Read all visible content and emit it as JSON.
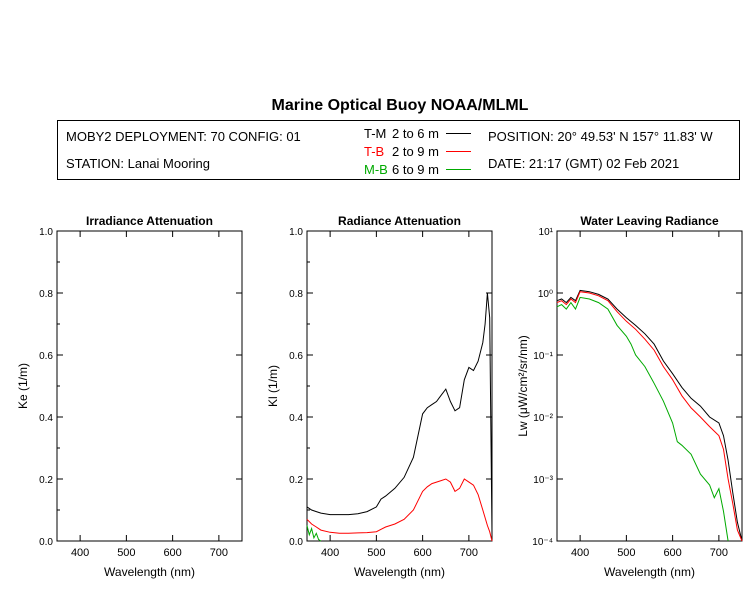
{
  "title": "Marine Optical Buoy NOAA/MLML",
  "info": {
    "deployment": "MOBY2 DEPLOYMENT: 70 CONFIG: 01",
    "station": "STATION: Lanai Mooring",
    "position": "POSITION: 20° 49.53' N   157° 11.83' W",
    "date": "DATE: 21:17 (GMT) 02 Feb 2021"
  },
  "legend": [
    {
      "label": "T-M",
      "range": "2 to 6  m",
      "color": "#000000"
    },
    {
      "label": "T-B",
      "range": "2 to 9  m",
      "color": "#ff0000"
    },
    {
      "label": "M-B",
      "range": "6 to 9  m",
      "color": "#00aa00"
    }
  ],
  "chart_data": [
    {
      "type": "line",
      "title": "Irradiance Attenuation",
      "xlabel": "Wavelength (nm)",
      "ylabel": "Ke  (1/m)",
      "xlim": [
        350,
        750
      ],
      "ylim": [
        0,
        1.0
      ],
      "xticks": [
        "400",
        "500",
        "600",
        "700"
      ],
      "yticks": [
        "0.0",
        "0.2",
        "0.4",
        "0.6",
        "0.8",
        "1.0"
      ],
      "series": []
    },
    {
      "type": "line",
      "title": "Radiance Attenuation",
      "xlabel": "Wavelength (nm)",
      "ylabel": "Kl  (1/m)",
      "xlim": [
        350,
        750
      ],
      "ylim": [
        0,
        1.0
      ],
      "xticks": [
        "400",
        "500",
        "600",
        "700"
      ],
      "yticks": [
        "0.0",
        "0.2",
        "0.4",
        "0.6",
        "0.8",
        "1.0"
      ],
      "series": [
        {
          "name": "T-M",
          "color": "#000000",
          "x": [
            350,
            360,
            370,
            380,
            400,
            420,
            440,
            460,
            480,
            500,
            510,
            520,
            540,
            560,
            580,
            590,
            600,
            610,
            620,
            630,
            640,
            650,
            660,
            670,
            680,
            690,
            700,
            710,
            720,
            730,
            735,
            740,
            745,
            750
          ],
          "y": [
            0.11,
            0.1,
            0.095,
            0.09,
            0.085,
            0.085,
            0.085,
            0.088,
            0.095,
            0.11,
            0.135,
            0.145,
            0.17,
            0.205,
            0.27,
            0.34,
            0.41,
            0.43,
            0.44,
            0.45,
            0.47,
            0.49,
            0.45,
            0.42,
            0.43,
            0.52,
            0.56,
            0.55,
            0.58,
            0.64,
            0.7,
            0.8,
            0.72,
            0.02
          ]
        },
        {
          "name": "T-B",
          "color": "#ff0000",
          "x": [
            350,
            360,
            370,
            380,
            400,
            420,
            440,
            460,
            480,
            500,
            520,
            540,
            560,
            580,
            590,
            600,
            610,
            620,
            630,
            640,
            650,
            660,
            670,
            680,
            690,
            700,
            710,
            720,
            730,
            740,
            745,
            750
          ],
          "y": [
            0.07,
            0.055,
            0.045,
            0.035,
            0.028,
            0.025,
            0.025,
            0.026,
            0.027,
            0.03,
            0.045,
            0.055,
            0.07,
            0.1,
            0.13,
            0.16,
            0.175,
            0.185,
            0.19,
            0.195,
            0.2,
            0.19,
            0.16,
            0.17,
            0.2,
            0.19,
            0.18,
            0.15,
            0.1,
            0.05,
            0.03,
            0.0
          ]
        },
        {
          "name": "M-B",
          "color": "#00aa00",
          "x": [
            350,
            355,
            360,
            365,
            370,
            375,
            380
          ],
          "y": [
            0.05,
            0.02,
            0.04,
            0.01,
            0.025,
            0.005,
            0.0
          ]
        }
      ]
    },
    {
      "type": "line",
      "title": "Water Leaving Radiance",
      "xlabel": "Wavelength (nm)",
      "ylabel": "Lw  (μW/cm²/sr/nm)",
      "xlim": [
        350,
        750
      ],
      "ylim": [
        0.0001,
        10
      ],
      "yscale": "log",
      "xticks": [
        "400",
        "500",
        "600",
        "700"
      ],
      "yticks": [
        "10⁻⁴",
        "10⁻³",
        "10⁻²",
        "10⁻¹",
        "10⁰",
        "10¹"
      ],
      "series": [
        {
          "name": "T-M",
          "color": "#000000",
          "x": [
            350,
            360,
            370,
            380,
            390,
            400,
            420,
            440,
            460,
            480,
            500,
            520,
            540,
            560,
            580,
            600,
            620,
            640,
            660,
            680,
            700,
            710,
            720,
            730,
            740,
            750
          ],
          "y": [
            0.75,
            0.8,
            0.7,
            0.85,
            0.75,
            1.1,
            1.05,
            0.95,
            0.8,
            0.55,
            0.4,
            0.3,
            0.22,
            0.15,
            0.08,
            0.05,
            0.03,
            0.02,
            0.015,
            0.01,
            0.008,
            0.005,
            0.002,
            0.0006,
            0.0002,
            0.0001
          ]
        },
        {
          "name": "T-B",
          "color": "#ff0000",
          "x": [
            350,
            360,
            370,
            380,
            390,
            400,
            420,
            440,
            460,
            480,
            500,
            520,
            540,
            560,
            580,
            600,
            620,
            640,
            660,
            680,
            700,
            710,
            720,
            730,
            740,
            750
          ],
          "y": [
            0.7,
            0.75,
            0.65,
            0.8,
            0.7,
            1.05,
            1.0,
            0.9,
            0.75,
            0.5,
            0.35,
            0.26,
            0.18,
            0.12,
            0.065,
            0.04,
            0.022,
            0.014,
            0.01,
            0.007,
            0.005,
            0.003,
            0.001,
            0.0004,
            0.00015,
            0.0001
          ]
        },
        {
          "name": "M-B",
          "color": "#00aa00",
          "x": [
            350,
            360,
            370,
            380,
            390,
            400,
            420,
            440,
            460,
            480,
            500,
            510,
            520,
            540,
            560,
            580,
            600,
            610,
            620,
            640,
            660,
            680,
            690,
            700,
            710,
            720
          ],
          "y": [
            0.6,
            0.65,
            0.55,
            0.7,
            0.55,
            0.85,
            0.8,
            0.7,
            0.55,
            0.3,
            0.2,
            0.15,
            0.1,
            0.065,
            0.035,
            0.018,
            0.008,
            0.004,
            0.0035,
            0.0025,
            0.0012,
            0.0008,
            0.0005,
            0.0007,
            0.0003,
            0.0001
          ]
        }
      ]
    }
  ]
}
